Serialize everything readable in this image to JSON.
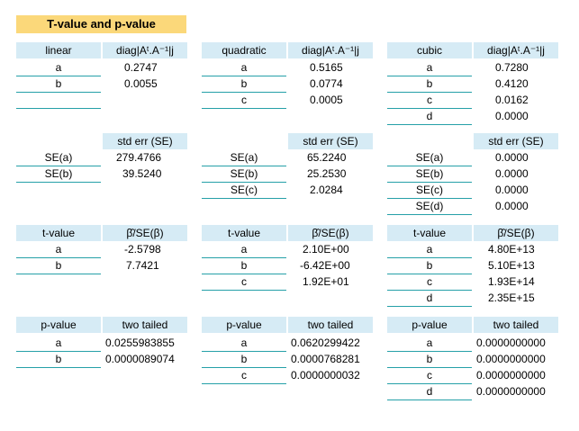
{
  "title": "T-value and p-value",
  "diag": {
    "col_header": "diag|Aᵗ.A⁻¹|j",
    "linear": {
      "header": "linear",
      "labels": [
        "a",
        "b"
      ],
      "values": [
        "0.2747",
        "0.0055"
      ]
    },
    "quadratic": {
      "header": "quadratic",
      "labels": [
        "a",
        "b",
        "c"
      ],
      "values": [
        "0.5165",
        "0.0774",
        "0.0005"
      ]
    },
    "cubic": {
      "header": "cubic",
      "labels": [
        "a",
        "b",
        "c",
        "d"
      ],
      "values": [
        "0.7280",
        "0.4120",
        "0.0162",
        "0.0000"
      ]
    }
  },
  "se": {
    "col_header": "std err (SE)",
    "linear": {
      "labels": [
        "SE(a)",
        "SE(b)"
      ],
      "values": [
        "279.4766",
        "39.5240"
      ]
    },
    "quadratic": {
      "labels": [
        "SE(a)",
        "SE(b)",
        "SE(c)"
      ],
      "values": [
        "65.2240",
        "25.2530",
        "2.0284"
      ]
    },
    "cubic": {
      "labels": [
        "SE(a)",
        "SE(b)",
        "SE(c)",
        "SE(d)"
      ],
      "values": [
        "0.0000",
        "0.0000",
        "0.0000",
        "0.0000"
      ]
    }
  },
  "tvalue": {
    "header": "t-value",
    "col_header": "β̂/SE(β)",
    "linear": {
      "labels": [
        "a",
        "b"
      ],
      "values": [
        "-2.5798",
        "7.7421"
      ]
    },
    "quadratic": {
      "labels": [
        "a",
        "b",
        "c"
      ],
      "values": [
        "2.10E+00",
        "-6.42E+00",
        "1.92E+01"
      ]
    },
    "cubic": {
      "labels": [
        "a",
        "b",
        "c",
        "d"
      ],
      "values": [
        "4.80E+13",
        "5.10E+13",
        "1.93E+14",
        "2.35E+15"
      ]
    }
  },
  "pvalue": {
    "header": "p-value",
    "col_header": "two tailed",
    "linear": {
      "labels": [
        "a",
        "b"
      ],
      "values": [
        "0.0255983855",
        "0.0000089074"
      ]
    },
    "quadratic": {
      "labels": [
        "a",
        "b",
        "c"
      ],
      "values": [
        "0.0620299422",
        "0.0000768281",
        "0.0000000032"
      ]
    },
    "cubic": {
      "labels": [
        "a",
        "b",
        "c",
        "d"
      ],
      "values": [
        "0.0000000000",
        "0.0000000000",
        "0.0000000000",
        "0.0000000000"
      ]
    }
  }
}
